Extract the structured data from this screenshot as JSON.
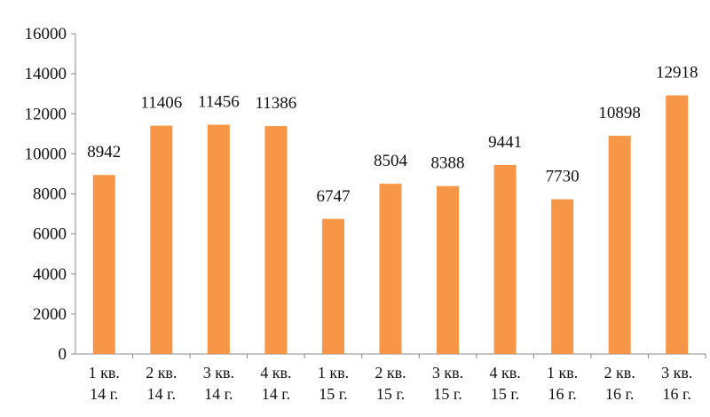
{
  "chart_data": {
    "type": "bar",
    "title": "",
    "xlabel": "",
    "ylabel": "",
    "ylim": [
      0,
      16000
    ],
    "yticks": [
      0,
      2000,
      4000,
      6000,
      8000,
      10000,
      12000,
      14000,
      16000
    ],
    "grid": false,
    "bar_color": "#F79646",
    "categories": [
      [
        "1 кв.",
        "14 г."
      ],
      [
        "2 кв.",
        "14 г."
      ],
      [
        "3 кв.",
        "14 г."
      ],
      [
        "4 кв.",
        "14 г."
      ],
      [
        "1 кв.",
        "15 г."
      ],
      [
        "2 кв.",
        "15 г."
      ],
      [
        "3 кв.",
        "15 г."
      ],
      [
        "4 кв.",
        "15 г."
      ],
      [
        "1 кв.",
        "16 г."
      ],
      [
        "2 кв.",
        "16 г."
      ],
      [
        "3 кв.",
        "16 г."
      ]
    ],
    "values": [
      8942,
      11406,
      11456,
      11386,
      6747,
      8504,
      8388,
      9441,
      7730,
      10898,
      12918
    ]
  }
}
